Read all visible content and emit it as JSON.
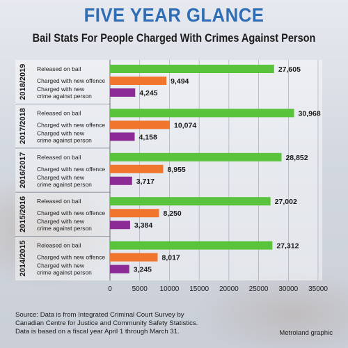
{
  "headline": "FIVE YEAR GLANCE",
  "subhead": "Bail Stats For People Charged With Crimes Against Person",
  "footer": {
    "line1": "Source: Data is from Integrated Criminal Court Survey by",
    "line2": "Canadian Centre for Justice and Community Safety Statistics.",
    "line3": "Data is based on a fiscal year April 1 through March 31."
  },
  "credit": "Metroland graphic",
  "colors": {
    "released": "#58c33b",
    "new_offence": "#f0762e",
    "crime_against_person": "#8c2a96",
    "headline": "#2f6db5"
  },
  "chart_data": {
    "type": "bar",
    "orientation": "horizontal",
    "title": "Bail Stats For People Charged With Crimes Against Person",
    "xlim": [
      0,
      35000
    ],
    "xticks": [
      "0",
      "5000",
      "10000",
      "15000",
      "20000",
      "25000",
      "30000",
      "35000"
    ],
    "grid": true,
    "groups": [
      {
        "year": "2018/2019",
        "bars": [
          {
            "label": "Released on bail",
            "value": 27605,
            "display": "27,605",
            "color": "#58c33b"
          },
          {
            "label": "Charged with new offence",
            "value": 9494,
            "display": "9,494",
            "color": "#f0762e"
          },
          {
            "label": "Charged with new crime against person",
            "value": 4245,
            "display": "4,245",
            "color": "#8c2a96"
          }
        ]
      },
      {
        "year": "2017/2018",
        "bars": [
          {
            "label": "Released on bail",
            "value": 30968,
            "display": "30,968",
            "color": "#58c33b"
          },
          {
            "label": "Charged with new offence",
            "value": 10074,
            "display": "10,074",
            "color": "#f0762e"
          },
          {
            "label": "Charged with new crime against person",
            "value": 4158,
            "display": "4,158",
            "color": "#8c2a96"
          }
        ]
      },
      {
        "year": "2016/2017",
        "bars": [
          {
            "label": "Released on bail",
            "value": 28852,
            "display": "28,852",
            "color": "#58c33b"
          },
          {
            "label": "Charged with new offence",
            "value": 8955,
            "display": "8,955",
            "color": "#f0762e"
          },
          {
            "label": "Charged with new crime against person",
            "value": 3717,
            "display": "3,717",
            "color": "#8c2a96"
          }
        ]
      },
      {
        "year": "2015/2016",
        "bars": [
          {
            "label": "Released on bail",
            "value": 27002,
            "display": "27,002",
            "color": "#58c33b"
          },
          {
            "label": "Charged with new offence",
            "value": 8250,
            "display": "8,250",
            "color": "#f0762e"
          },
          {
            "label": "Charged with new crime against person",
            "value": 3384,
            "display": "3,384",
            "color": "#8c2a96"
          }
        ]
      },
      {
        "year": "2014/2015",
        "bars": [
          {
            "label": "Released on bail",
            "value": 27312,
            "display": "27,312",
            "color": "#58c33b"
          },
          {
            "label": "Charged with new offence",
            "value": 8017,
            "display": "8,017",
            "color": "#f0762e"
          },
          {
            "label": "Charged with new crime against person",
            "value": 3245,
            "display": "3,245",
            "color": "#8c2a96"
          }
        ]
      }
    ]
  }
}
